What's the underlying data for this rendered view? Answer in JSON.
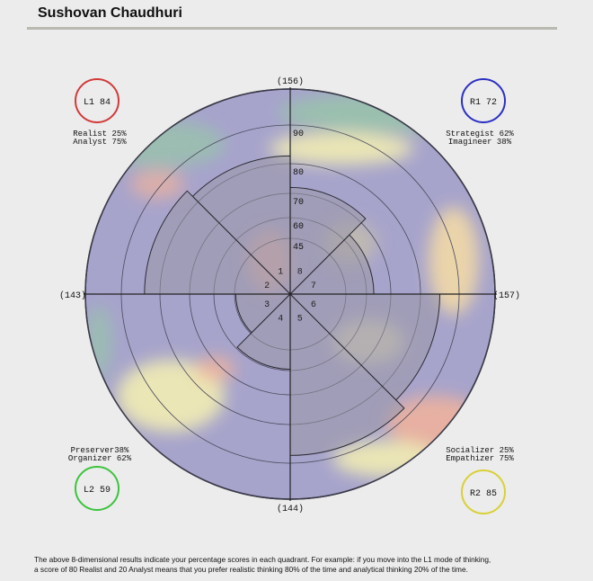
{
  "header": {
    "title": "Sushovan Chaudhuri"
  },
  "chart_data": {
    "type": "polar-bar",
    "title": "",
    "ring_ticks": [
      45,
      60,
      70,
      80,
      90
    ],
    "axis_totals": {
      "top": "(156)",
      "right": "(157)",
      "bottom": "(144)",
      "left": "(143)"
    },
    "sectors": [
      {
        "number": "1",
        "label": "Realist",
        "value": 82
      },
      {
        "number": "2",
        "label": "Analyst",
        "value": 84
      },
      {
        "number": "3",
        "label": "Preserver",
        "value": 44
      },
      {
        "number": "4",
        "label": "Organizer",
        "value": 59
      },
      {
        "number": "5",
        "label": "Socializer",
        "value": 88
      },
      {
        "number": "6",
        "label": "Empathizer",
        "value": 85
      },
      {
        "number": "7",
        "label": "Imagineer",
        "value": 63
      },
      {
        "number": "8",
        "label": "Strategist",
        "value": 72
      }
    ],
    "quadrants": [
      {
        "id": "L1",
        "badge": "L1 84",
        "line1": "Realist 25%",
        "line2": "Analyst 75%",
        "color": "#d23a3a"
      },
      {
        "id": "R1",
        "badge": "R1 72",
        "line1": "Strategist 62%",
        "line2": "Imagineer 38%",
        "color": "#2b2fc4"
      },
      {
        "id": "L2",
        "badge": "L2 59",
        "line1": "Preserver38%",
        "line2": "Organizer 62%",
        "color": "#3cc43c"
      },
      {
        "id": "R2",
        "badge": "R2 85",
        "line1": "Socializer 25%",
        "line2": "Empathizer 75%",
        "color": "#d9d035"
      }
    ]
  },
  "footnote": {
    "line1": "The above 8-dimensional results indicate your percentage scores in each quadrant. For example: if you move into the L1 mode of thinking,",
    "line2": "a score of 80 Realist and 20 Analyst means that you prefer realistic thinking 80% of the time and analytical thinking 20% of the time."
  }
}
